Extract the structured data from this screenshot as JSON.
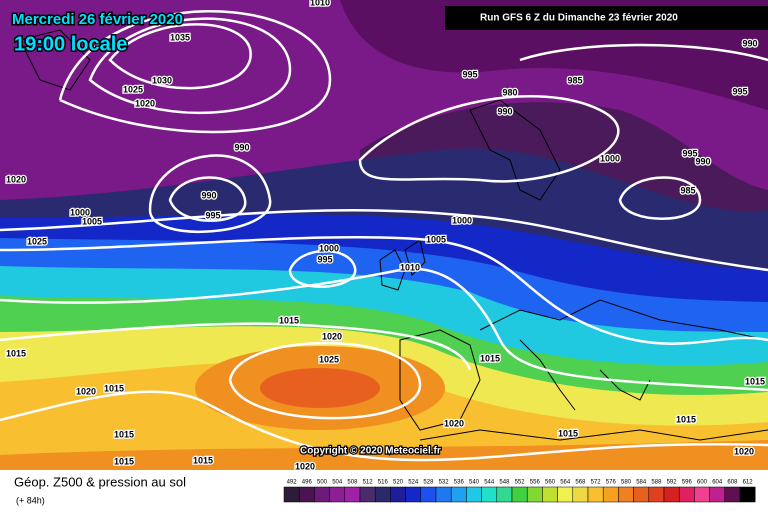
{
  "header": {
    "date": "Mercredi 26 février 2020",
    "time": "19:00 locale",
    "run": "Run GFS 6 Z du Dimanche 23 février 2020"
  },
  "map": {
    "copyright": "Copyright © 2020 Meteociel.fr",
    "isobar_labels": [
      "1010",
      "1035",
      "1030",
      "1025",
      "1020",
      "995",
      "985",
      "990",
      "995",
      "980",
      "990",
      "990",
      "1000",
      "995",
      "990",
      "985",
      "1020",
      "990",
      "995",
      "1000",
      "1005",
      "1000",
      "1025",
      "1000",
      "995",
      "1005",
      "1010",
      "1015",
      "1020",
      "1025",
      "1015",
      "1015",
      "1020",
      "1015",
      "1015",
      "1015",
      "1020",
      "1015",
      "1015",
      "1015",
      "1015",
      "1020",
      "1020"
    ]
  },
  "footer": {
    "title": "Géop. Z500 & pression au sol",
    "lead": "(+ 84h)"
  },
  "scale": {
    "values": [
      492,
      496,
      500,
      504,
      508,
      512,
      516,
      520,
      524,
      528,
      532,
      536,
      540,
      544,
      548,
      552,
      556,
      560,
      564,
      568,
      572,
      576,
      580,
      584,
      588,
      592,
      596,
      600,
      604,
      608,
      612
    ],
    "colors": [
      "#2d1b3a",
      "#4a1450",
      "#6e1a78",
      "#8c1e96",
      "#a020a8",
      "#4b2a6e",
      "#2a2a6a",
      "#1e1e9a",
      "#1428c8",
      "#1e50f0",
      "#1e78f0",
      "#20a0f0",
      "#20c8e8",
      "#20e0c8",
      "#30d890",
      "#40d040",
      "#80d830",
      "#c0e030",
      "#f0f050",
      "#f0d840",
      "#f8c030",
      "#f8a020",
      "#f08020",
      "#e86020",
      "#e04020",
      "#d82020",
      "#e02060",
      "#f04090",
      "#c02090",
      "#601050",
      "#000000"
    ]
  }
}
